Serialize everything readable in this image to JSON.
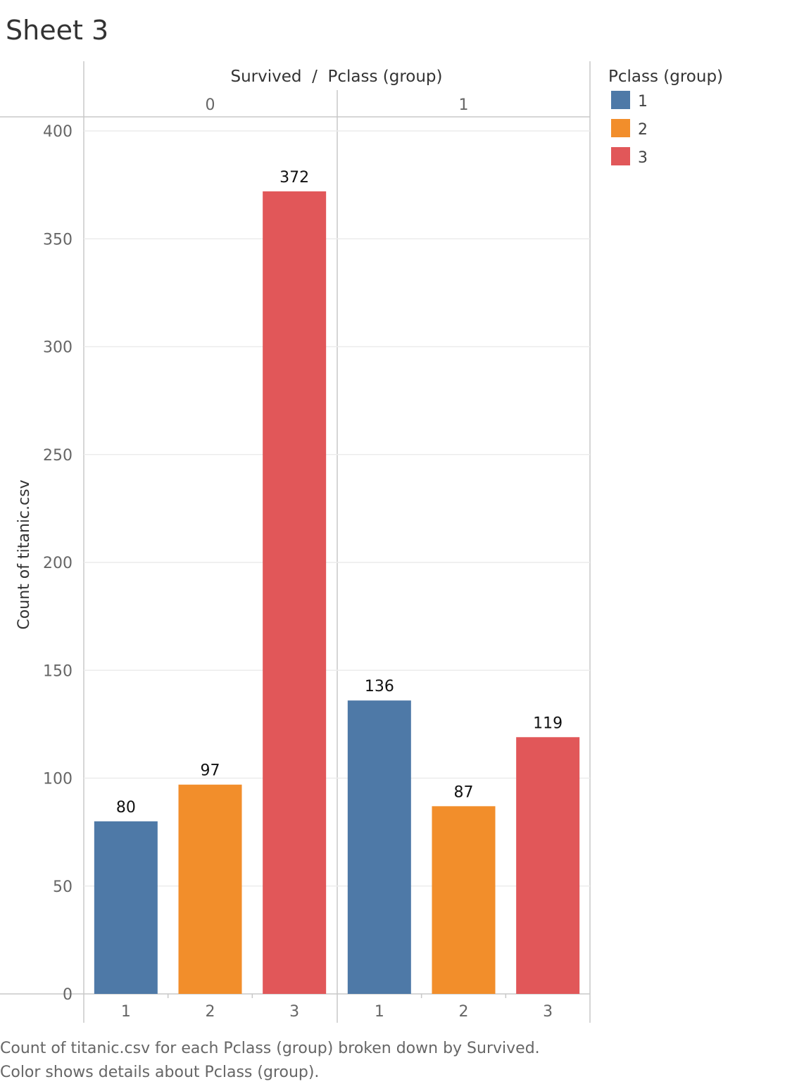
{
  "sheet_title": "Sheet 3",
  "caption": [
    "Count of titanic.csv for each Pclass (group) broken down by Survived.",
    "Color shows details about Pclass (group)."
  ],
  "chart_data": {
    "type": "bar",
    "column_header": "Survived  /  Pclass (group)",
    "ylabel": "Count of titanic.csv",
    "ylim": [
      0,
      400
    ],
    "yticks": [
      0,
      50,
      100,
      150,
      200,
      250,
      300,
      350,
      400
    ],
    "panels": [
      {
        "label": "0",
        "categories": [
          "1",
          "2",
          "3"
        ],
        "values": [
          80,
          97,
          372
        ]
      },
      {
        "label": "1",
        "categories": [
          "1",
          "2",
          "3"
        ],
        "values": [
          136,
          87,
          119
        ]
      }
    ],
    "legend": {
      "title": "Pclass (group)",
      "position": "top-right",
      "items": [
        {
          "label": "1",
          "color": "#4e79a7"
        },
        {
          "label": "2",
          "color": "#f28e2b"
        },
        {
          "label": "3",
          "color": "#e15759"
        }
      ]
    },
    "grid": true
  }
}
